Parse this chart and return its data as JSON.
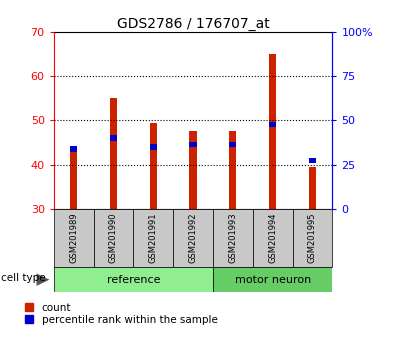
{
  "title": "GDS2786 / 176707_at",
  "categories": [
    "GSM201989",
    "GSM201990",
    "GSM201991",
    "GSM201992",
    "GSM201993",
    "GSM201994",
    "GSM201995"
  ],
  "red_values": [
    43.2,
    55.0,
    49.5,
    47.5,
    47.5,
    65.0,
    39.5
  ],
  "blue_values": [
    43.5,
    46.0,
    44.0,
    44.5,
    44.5,
    49.0,
    41.0
  ],
  "ylim_left": [
    30,
    70
  ],
  "ylim_right": [
    0,
    100
  ],
  "yticks_left": [
    30,
    40,
    50,
    60,
    70
  ],
  "yticks_right": [
    0,
    25,
    50,
    75,
    100
  ],
  "yticklabels_right": [
    "0",
    "25",
    "50",
    "75",
    "100%"
  ],
  "group_colors": [
    "#90EE90",
    "#66CC66"
  ],
  "bar_color_red": "#CC2200",
  "bar_color_blue": "#0000CC",
  "bar_width": 0.18,
  "blue_bar_height": 1.2,
  "label_box_color": "#c8c8c8"
}
